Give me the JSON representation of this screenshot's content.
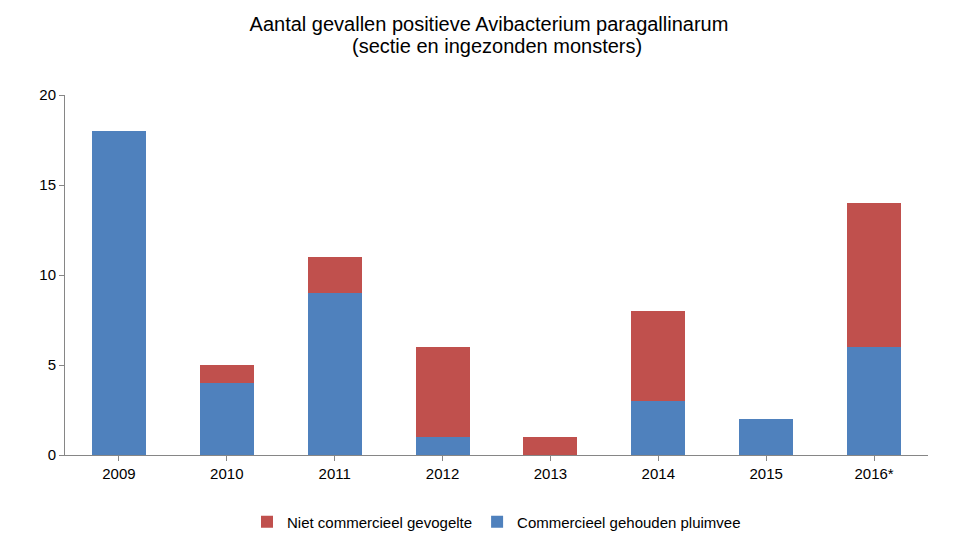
{
  "chart_data": {
    "type": "bar",
    "title": "Aantal gevallen positieve Avibacterium paragallinarum",
    "subtitle": "(sectie en ingezonden monsters)",
    "categories": [
      "2009",
      "2010",
      "2011",
      "2012",
      "2013",
      "2014",
      "2015",
      "2016*"
    ],
    "series": [
      {
        "name": "Commercieel gehouden pluimvee",
        "color": "#4f81bd",
        "values": [
          18,
          4,
          9,
          1,
          0,
          3,
          2,
          6
        ]
      },
      {
        "name": "Niet commercieel gevogelte",
        "color": "#c0504d",
        "values": [
          0,
          1,
          2,
          5,
          1,
          5,
          0,
          8
        ]
      }
    ],
    "stacked": true,
    "ylim": [
      0,
      20
    ],
    "yticks": [
      0,
      5,
      10,
      15,
      20
    ],
    "grid": false,
    "legend": "bottom"
  }
}
